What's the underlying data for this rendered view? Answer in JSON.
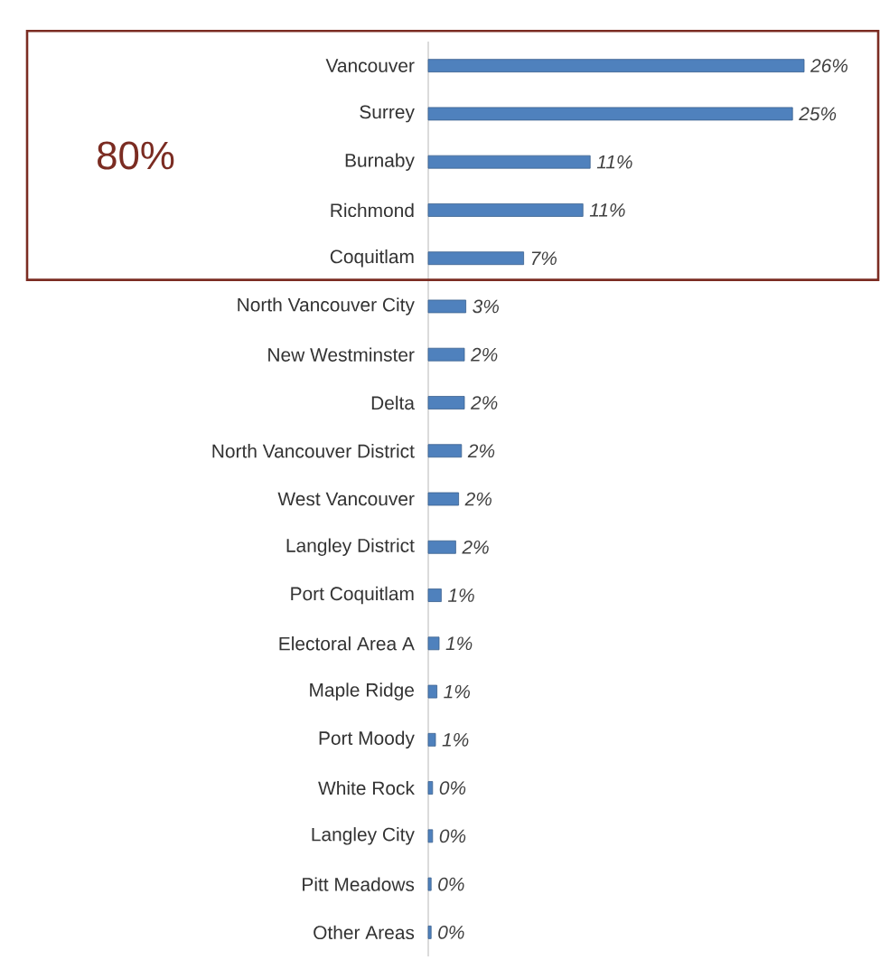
{
  "chart_data": {
    "type": "bar",
    "orientation": "horizontal",
    "color": "#4f81bd",
    "categories": [
      "Vancouver",
      "Surrey",
      "Burnaby",
      "Richmond",
      "Coquitlam",
      "North Vancouver City",
      "New Westminster",
      "Delta",
      "North Vancouver District",
      "West Vancouver",
      "Langley District",
      "Port Coquitlam",
      "Electoral Area A",
      "Maple Ridge",
      "Port Moody",
      "White Rock",
      "Langley City",
      "Pitt Meadows",
      "Other Areas"
    ],
    "values": [
      26,
      25.2,
      11.2,
      10.7,
      6.6,
      2.6,
      2.5,
      2.5,
      2.3,
      2.1,
      1.9,
      0.9,
      0.75,
      0.6,
      0.5,
      0.3,
      0.3,
      0.2,
      0.2
    ],
    "value_labels": [
      "26%",
      "25%",
      "11%",
      "11%",
      "7%",
      "3%",
      "2%",
      "2%",
      "2%",
      "2%",
      "2%",
      "1%",
      "1%",
      "1%",
      "1%",
      "0%",
      "0%",
      "0%",
      "0%"
    ],
    "annotations": [
      "80%"
    ]
  }
}
